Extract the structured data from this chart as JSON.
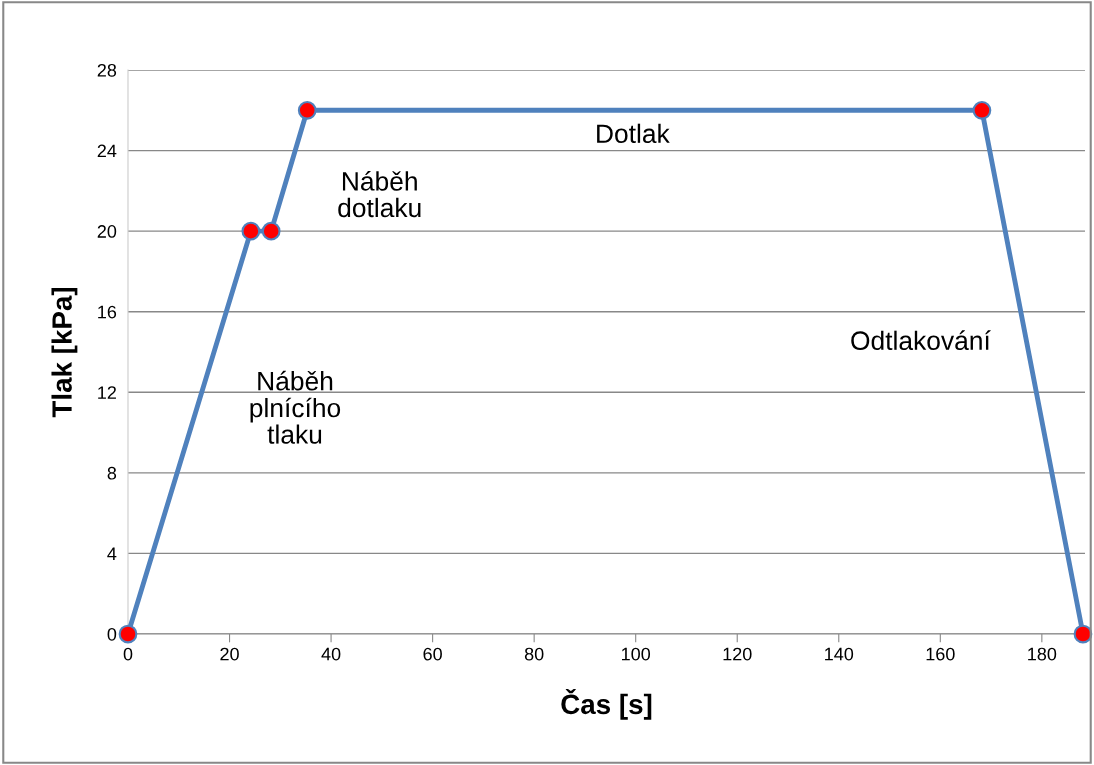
{
  "chart_data": {
    "type": "line",
    "xlabel": "Čas [s]",
    "ylabel": "Tlak [kPa]",
    "x": [
      0,
      24.2,
      28.2,
      35.3,
      168.2,
      188.1
    ],
    "series": [
      {
        "color": "#4f81bd",
        "values": [
          0,
          20,
          20,
          26,
          26,
          0
        ]
      }
    ],
    "marker": "circle",
    "line_style": "solid",
    "xlim": [
      0,
      188.5
    ],
    "xticks": [
      0,
      20,
      40,
      60,
      80,
      100,
      120,
      140,
      160,
      180
    ],
    "ylim": [
      0,
      28
    ],
    "yticks": [
      0,
      4,
      8,
      12,
      16,
      20,
      24,
      28
    ],
    "grid": "y",
    "annotations": [
      "Náběh\nplnícího\ntlaku",
      "Náběh\ndotlaku",
      "Dotlak",
      "Odtlakování"
    ]
  }
}
